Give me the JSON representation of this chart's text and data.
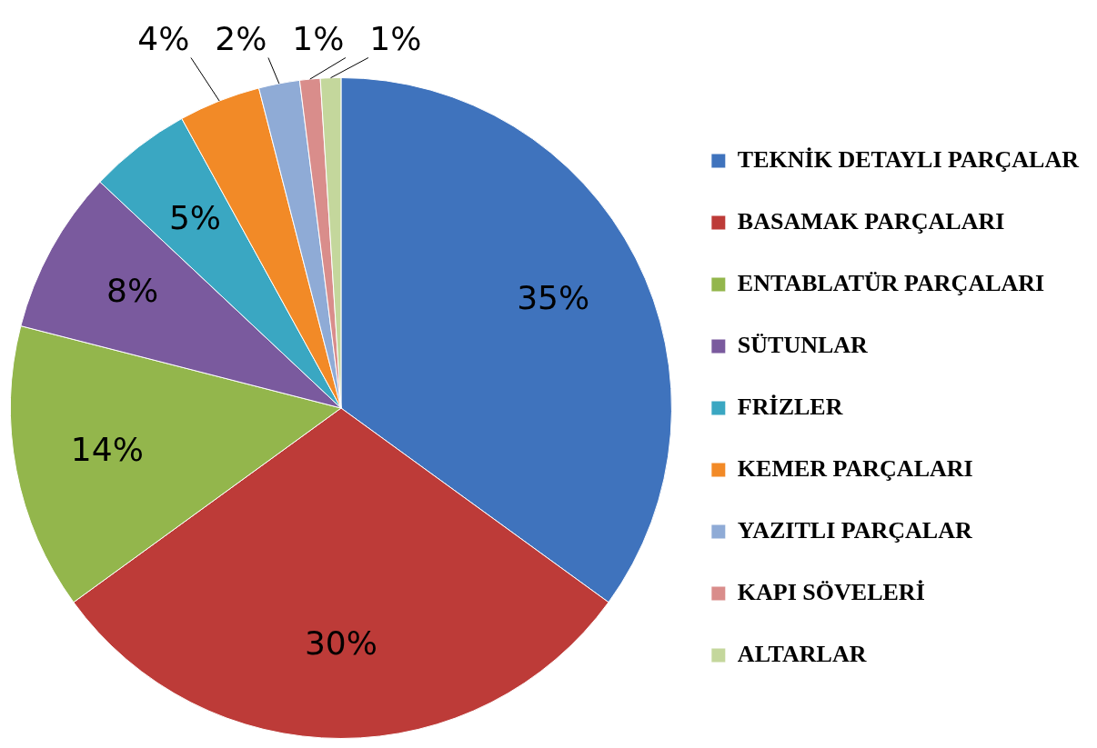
{
  "chart_data": {
    "type": "pie",
    "categories": [
      "TEKNİK DETAYLI PARÇALAR",
      "BASAMAK PARÇALARI",
      "ENTABLATÜR PARÇALARI",
      "SÜTUNLAR",
      "FRİZLER",
      "KEMER PARÇALARI",
      "YAZITLI PARÇALAR",
      "KAPI SÖVELERİ",
      "ALTARLAR"
    ],
    "values": [
      35,
      30,
      14,
      8,
      5,
      4,
      2,
      1,
      1
    ],
    "value_labels": [
      "35%",
      "30%",
      "14%",
      "8%",
      "5%",
      "4%",
      "2%",
      "1%",
      "1%"
    ],
    "colors": [
      "#3f73bd",
      "#bd3b38",
      "#93b64c",
      "#7a5a9e",
      "#3aa7c2",
      "#f28a27",
      "#8fabd6",
      "#d98d8b",
      "#c4d79c"
    ],
    "legend": "right"
  }
}
